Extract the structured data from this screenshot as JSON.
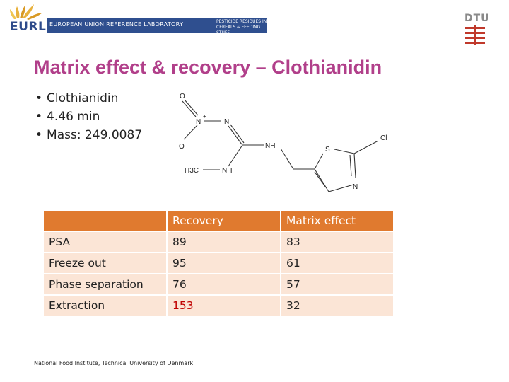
{
  "header": {
    "eurl_label": "EURL",
    "banner_title": "EUROPEAN UNION REFERENCE LABORATORY",
    "banner_subtitle": "PESTICIDE RESIDUES IN\nCEREALS & FEEDING STUFF",
    "dtu_label": "DTU",
    "colors": {
      "banner": "#2f4f8f",
      "dtu_red": "#c0392b"
    }
  },
  "title": "Matrix effect & recovery – Clothianidin",
  "bullets": [
    "Clothianidin",
    "4.46 min",
    "Mass: 249.0087"
  ],
  "molecule": {
    "atoms": {
      "o_top": "O",
      "n_plus": "N",
      "plus": "+",
      "n_imine": "N",
      "o_bottom": "O",
      "nh_right": "NH",
      "s_ring": "S",
      "cl": "Cl",
      "h3c": "H3C",
      "nh_bottom": "NH",
      "n_ring": "N"
    }
  },
  "table": {
    "headers": [
      "",
      "Recovery",
      "Matrix effect"
    ],
    "rows": [
      {
        "name": "PSA",
        "recovery": "89",
        "matrix": "83"
      },
      {
        "name": "Freeze out",
        "recovery": "95",
        "matrix": "61"
      },
      {
        "name": "Phase separation",
        "recovery": "76",
        "matrix": "57"
      },
      {
        "name": "Extraction",
        "recovery": "153",
        "matrix": "32",
        "highlight": "recovery"
      }
    ],
    "colors": {
      "header": "#e07a2f",
      "cell": "#fbe5d6",
      "highlight": "#c00000"
    }
  },
  "footer": "National Food Institute, Technical University of Denmark"
}
